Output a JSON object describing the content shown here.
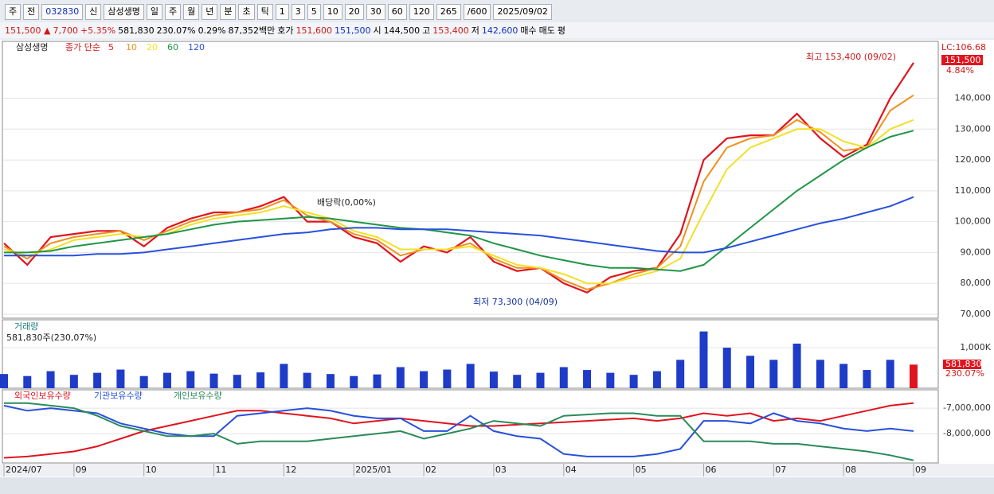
{
  "toolbar": {
    "items": [
      "주",
      "전",
      "032830",
      "신",
      "삼성생명",
      "일",
      "주",
      "월",
      "년",
      "분",
      "초",
      "틱",
      "1",
      "3",
      "5",
      "10",
      "20",
      "30",
      "60",
      "120",
      "265",
      "/600",
      "2025/09/02"
    ]
  },
  "quote_bar": {
    "items": [
      "151,500 ▲",
      "7,700",
      "+5.35%",
      "581,830",
      "230.07%",
      "0.29%",
      "87,352백만",
      "호가",
      "151,600",
      "151,500",
      "시",
      "144,500",
      "고",
      "153,400",
      "저",
      "142,600",
      "매수",
      "매도",
      "평"
    ]
  },
  "chart_data": [
    {
      "type": "line",
      "title": "삼성생명",
      "legend_prefix": "종가 단순",
      "categories": [
        "2024/07",
        null,
        null,
        "09",
        null,
        null,
        "10",
        null,
        null,
        "11",
        null,
        null,
        "12",
        null,
        null,
        "2025/01",
        null,
        null,
        "02",
        null,
        null,
        "03",
        null,
        null,
        "04",
        null,
        null,
        "05",
        null,
        null,
        "06",
        null,
        null,
        "07",
        null,
        null,
        "08",
        null,
        null,
        "09"
      ],
      "series": [
        {
          "name": "5",
          "color": "#e0141e",
          "values": [
            93000,
            86000,
            95000,
            96000,
            97000,
            97000,
            92000,
            98000,
            101000,
            103000,
            103000,
            105000,
            108000,
            100000,
            100000,
            95000,
            93000,
            87000,
            92000,
            90000,
            95000,
            87000,
            84000,
            85000,
            80000,
            77000,
            82000,
            84000,
            85000,
            96000,
            120000,
            127000,
            128000,
            128000,
            135000,
            127000,
            121000,
            125000,
            140000,
            151500
          ]
        },
        {
          "name": "10",
          "color": "#f0901e",
          "values": [
            92000,
            88000,
            93000,
            95000,
            96000,
            97000,
            94000,
            97000,
            100000,
            102000,
            103000,
            104000,
            107000,
            102000,
            100000,
            96000,
            94000,
            89000,
            91000,
            91000,
            93000,
            88000,
            85000,
            85000,
            81000,
            78000,
            80000,
            83000,
            85000,
            92000,
            113000,
            124000,
            127000,
            128000,
            133000,
            129000,
            123000,
            124000,
            136000,
            141000
          ]
        },
        {
          "name": "20",
          "color": "#f2e028",
          "values": [
            91000,
            89000,
            91000,
            94000,
            95000,
            96000,
            95000,
            96000,
            99000,
            101000,
            102000,
            103000,
            105000,
            103000,
            101000,
            97000,
            95000,
            91000,
            91000,
            91000,
            92000,
            89000,
            86000,
            85000,
            83000,
            80000,
            80000,
            82000,
            84000,
            88000,
            103000,
            117000,
            124000,
            127000,
            130000,
            130000,
            126000,
            124000,
            130000,
            133000
          ]
        },
        {
          "name": "60",
          "color": "#1e9646",
          "values": [
            90000,
            90000,
            90500,
            92000,
            93000,
            94000,
            95000,
            96000,
            97500,
            99000,
            100000,
            100500,
            101000,
            101500,
            101000,
            100000,
            99000,
            98000,
            97500,
            96500,
            95500,
            93000,
            91000,
            89000,
            87500,
            86000,
            85000,
            85000,
            84500,
            84000,
            86000,
            92000,
            98000,
            104000,
            110000,
            115000,
            120000,
            124000,
            127500,
            129500
          ]
        },
        {
          "name": "120",
          "color": "#2850dc",
          "values": [
            89000,
            89000,
            89000,
            89000,
            89500,
            89500,
            90000,
            91000,
            92000,
            93000,
            94000,
            95000,
            96000,
            96500,
            97500,
            98000,
            98000,
            97500,
            97500,
            97500,
            97000,
            96500,
            96000,
            95500,
            94500,
            93500,
            92500,
            91500,
            90500,
            90000,
            90000,
            91500,
            93500,
            95500,
            97500,
            99500,
            101000,
            103000,
            105000,
            108000
          ]
        }
      ],
      "ylim": [
        68700,
        156900
      ],
      "yticks": [
        {
          "value": 70000,
          "label": "70,000"
        },
        {
          "value": 80000,
          "label": "80,000"
        },
        {
          "value": 90000,
          "label": "90,000"
        },
        {
          "value": 100000,
          "label": "100,000"
        },
        {
          "value": 110000,
          "label": "110,000"
        },
        {
          "value": 120000,
          "label": "120,000"
        },
        {
          "value": 130000,
          "label": "130,000"
        },
        {
          "value": 140000,
          "label": "140,000"
        }
      ],
      "grid": true,
      "annotations": [
        "최고 153,400 (09/02)",
        "최저 73,300 (04/09)",
        "배당락(0,00%)"
      ],
      "last_label": "151,500",
      "change_label": "4.84%",
      "lc_label": "LC:106.68"
    },
    {
      "type": "bar",
      "title": "거래량",
      "subtitle": "581,830주(230,07%)",
      "color": "#1e3cc8",
      "values": [
        350000,
        300000,
        420000,
        330000,
        380000,
        460000,
        300000,
        380000,
        420000,
        360000,
        330000,
        390000,
        600000,
        380000,
        350000,
        300000,
        340000,
        520000,
        420000,
        460000,
        600000,
        410000,
        330000,
        380000,
        520000,
        450000,
        380000,
        330000,
        420000,
        700000,
        1400000,
        1000000,
        800000,
        700000,
        1100000,
        700000,
        600000,
        450000,
        700000,
        581830
      ],
      "ylim": [
        0,
        1570000
      ],
      "yticks": [
        {
          "value": 1000000,
          "label": "1,000K"
        }
      ],
      "grid": true,
      "last_label": "581,830",
      "change_label": "230.07%"
    },
    {
      "type": "line",
      "title": "",
      "series": [
        {
          "name": "외국인보유수량",
          "color": "#e0141e",
          "values": [
            -8950000,
            -8900000,
            -8800000,
            -8700000,
            -8500000,
            -8200000,
            -7900000,
            -7700000,
            -7500000,
            -7300000,
            -7100000,
            -7100000,
            -7200000,
            -7300000,
            -7400000,
            -7600000,
            -7500000,
            -7400000,
            -7500000,
            -7600000,
            -7700000,
            -7700000,
            -7650000,
            -7600000,
            -7550000,
            -7500000,
            -7450000,
            -7400000,
            -7500000,
            -7400000,
            -7200000,
            -7300000,
            -7200000,
            -7500000,
            -7400000,
            -7500000,
            -7300000,
            -7100000,
            -6900000,
            -6800000
          ]
        },
        {
          "name": "기관보유수량",
          "color": "#2850dc",
          "values": [
            -6900000,
            -7100000,
            -7000000,
            -7100000,
            -7200000,
            -7600000,
            -7800000,
            -8000000,
            -8100000,
            -8100000,
            -7300000,
            -7200000,
            -7100000,
            -7000000,
            -7100000,
            -7300000,
            -7400000,
            -7400000,
            -7900000,
            -7900000,
            -7300000,
            -7900000,
            -8100000,
            -8200000,
            -8800000,
            -8900000,
            -8900000,
            -8900000,
            -8800000,
            -8600000,
            -7500000,
            -7500000,
            -7600000,
            -7200000,
            -7500000,
            -7600000,
            -7800000,
            -7900000,
            -7800000,
            -7900000
          ]
        },
        {
          "name": "개인보유수량",
          "color": "#2a8a5a",
          "values": [
            -6800000,
            -6800000,
            -6900000,
            -7000000,
            -7300000,
            -7700000,
            -7900000,
            -8100000,
            -8100000,
            -8000000,
            -8400000,
            -8300000,
            -8300000,
            -8300000,
            -8200000,
            -8100000,
            -8000000,
            -7900000,
            -8200000,
            -8000000,
            -7800000,
            -7500000,
            -7600000,
            -7700000,
            -7300000,
            -7250000,
            -7200000,
            -7200000,
            -7300000,
            -7300000,
            -8300000,
            -8300000,
            -8300000,
            -8400000,
            -8400000,
            -8500000,
            -8600000,
            -8700000,
            -8850000,
            -9050000
          ]
        }
      ],
      "ylim": [
        -9090000,
        -6340000
      ],
      "yticks": [
        {
          "value": -7000000,
          "label": "-7,000,000"
        },
        {
          "value": -8000000,
          "label": "-8,000,000"
        }
      ],
      "grid": true
    }
  ]
}
